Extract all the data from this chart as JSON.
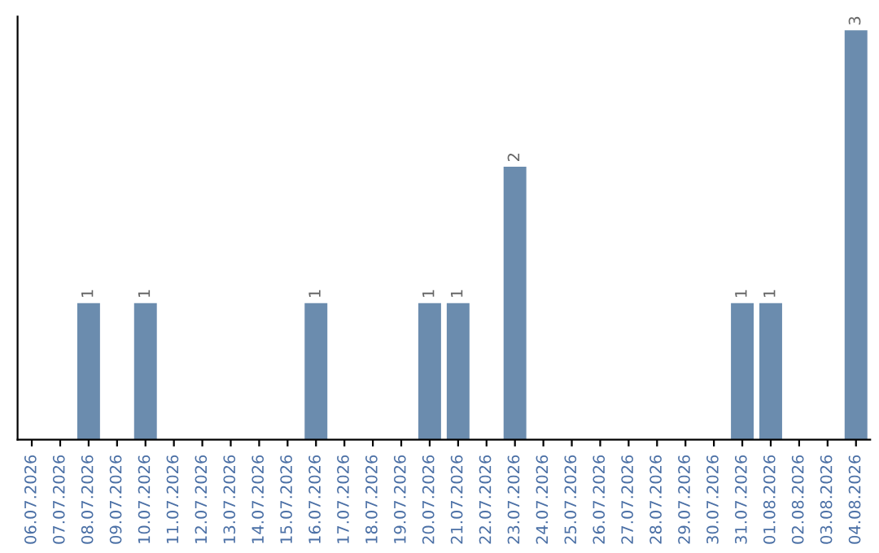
{
  "chart_data": {
    "type": "bar",
    "categories": [
      "06.07.2026",
      "07.07.2026",
      "08.07.2026",
      "09.07.2026",
      "10.07.2026",
      "11.07.2026",
      "12.07.2026",
      "13.07.2026",
      "14.07.2026",
      "15.07.2026",
      "16.07.2026",
      "17.07.2026",
      "18.07.2026",
      "19.07.2026",
      "20.07.2026",
      "21.07.2026",
      "22.07.2026",
      "23.07.2026",
      "24.07.2026",
      "25.07.2026",
      "26.07.2026",
      "27.07.2026",
      "28.07.2026",
      "29.07.2026",
      "30.07.2026",
      "31.07.2026",
      "01.08.2026",
      "02.08.2026",
      "03.08.2026",
      "04.08.2026"
    ],
    "values": [
      0,
      0,
      1,
      0,
      1,
      0,
      0,
      0,
      0,
      0,
      1,
      0,
      0,
      0,
      1,
      1,
      0,
      2,
      0,
      0,
      0,
      0,
      0,
      0,
      0,
      1,
      1,
      0,
      0,
      3
    ],
    "value_labels": [
      null,
      null,
      "1",
      null,
      "1",
      null,
      null,
      null,
      null,
      null,
      "1",
      null,
      null,
      null,
      "1",
      "1",
      null,
      "2",
      null,
      null,
      null,
      null,
      null,
      null,
      null,
      "1",
      "1",
      null,
      null,
      "3"
    ],
    "color": "#6b8cae",
    "ylim": [
      0,
      3.1
    ],
    "tick_labels": "x",
    "grid": false,
    "legend": false
  }
}
